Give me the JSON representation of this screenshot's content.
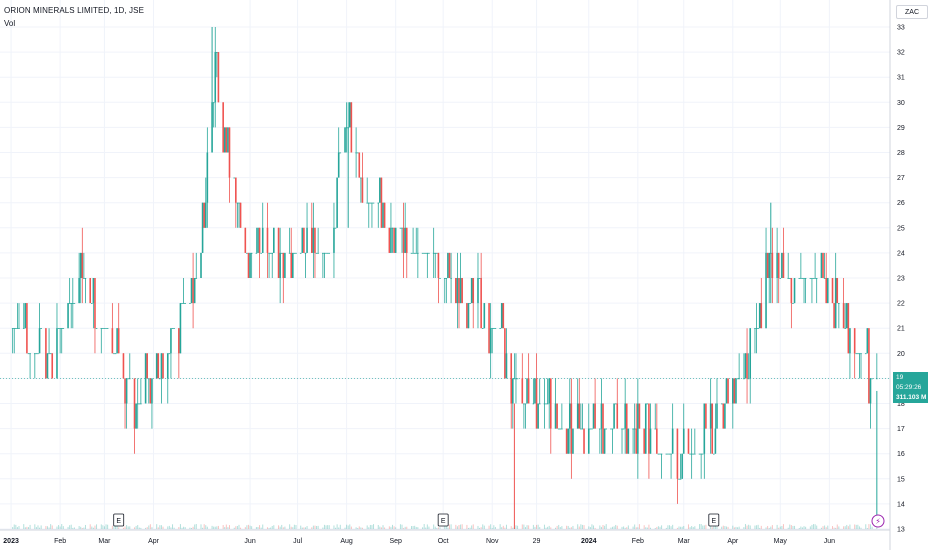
{
  "header": {
    "title": "ORION MINERALS LIMITED, 1D, JSE",
    "volume_label": "Vol",
    "currency": "ZAC"
  },
  "price_tags": {
    "last_price": "19",
    "countdown": "05:29:26",
    "volume": "311.103 M"
  },
  "colors": {
    "up": "#26a69a",
    "down": "#ef5350",
    "grid": "#f0f3fa",
    "axis_text": "#131722",
    "last_price_line": "#26a69a"
  },
  "chart_data": {
    "type": "bar",
    "style": "OHLC candlestick bars",
    "y_axis": {
      "min": 13,
      "max": 33,
      "ticks": [
        13,
        14,
        15,
        16,
        17,
        18,
        19,
        20,
        21,
        22,
        23,
        24,
        25,
        26,
        27,
        28,
        29,
        30,
        31,
        32,
        33
      ],
      "side": "right"
    },
    "x_axis": {
      "labels": [
        "2023",
        "Feb",
        "Mar",
        "Apr",
        "Jun",
        "Jul",
        "Aug",
        "Sep",
        "Oct",
        "Nov",
        "29",
        "2024",
        "Feb",
        "Mar",
        "Apr",
        "May",
        "Jun"
      ],
      "bold": [
        "2023",
        "2024"
      ]
    },
    "last_price": 19,
    "price_path": [
      {
        "date": "2023-01-01",
        "price": 21
      },
      {
        "date": "2023-01-20",
        "price": 20
      },
      {
        "date": "2023-02-05",
        "price": 21
      },
      {
        "date": "2023-02-15",
        "price": 23
      },
      {
        "date": "2023-02-25",
        "price": 21
      },
      {
        "date": "2023-03-10",
        "price": 20
      },
      {
        "date": "2023-03-20",
        "price": 18
      },
      {
        "date": "2023-04-01",
        "price": 19
      },
      {
        "date": "2023-04-15",
        "price": 21
      },
      {
        "date": "2023-04-30",
        "price": 23
      },
      {
        "date": "2023-05-10",
        "price": 31
      },
      {
        "date": "2023-05-20",
        "price": 27
      },
      {
        "date": "2023-05-31",
        "price": 24
      },
      {
        "date": "2023-06-15",
        "price": 24
      },
      {
        "date": "2023-07-01",
        "price": 24
      },
      {
        "date": "2023-07-20",
        "price": 24
      },
      {
        "date": "2023-08-01",
        "price": 29
      },
      {
        "date": "2023-08-15",
        "price": 26
      },
      {
        "date": "2023-09-01",
        "price": 25
      },
      {
        "date": "2023-09-20",
        "price": 24
      },
      {
        "date": "2023-10-05",
        "price": 23
      },
      {
        "date": "2023-10-20",
        "price": 22
      },
      {
        "date": "2023-11-05",
        "price": 21
      },
      {
        "date": "2023-11-15",
        "price": 19
      },
      {
        "date": "2023-12-01",
        "price": 18
      },
      {
        "date": "2023-12-20",
        "price": 17
      },
      {
        "date": "2024-01-10",
        "price": 17
      },
      {
        "date": "2024-02-01",
        "price": 17
      },
      {
        "date": "2024-02-20",
        "price": 16
      },
      {
        "date": "2024-03-10",
        "price": 16
      },
      {
        "date": "2024-03-25",
        "price": 18
      },
      {
        "date": "2024-04-10",
        "price": 19
      },
      {
        "date": "2024-04-25",
        "price": 24
      },
      {
        "date": "2024-05-10",
        "price": 23
      },
      {
        "date": "2024-05-25",
        "price": 23
      },
      {
        "date": "2024-06-10",
        "price": 22
      },
      {
        "date": "2024-06-20",
        "price": 20
      },
      {
        "date": "2024-07-01",
        "price": 19
      }
    ],
    "extremes": [
      {
        "date": "2023-05-08",
        "high": 33
      },
      {
        "date": "2023-08-02",
        "high": 29
      },
      {
        "date": "2023-11-15",
        "low": 13
      },
      {
        "date": "2024-04-25",
        "high": 26
      },
      {
        "date": "2024-07-01",
        "low": 13.5
      }
    ],
    "event_markers": [
      {
        "label": "E",
        "date": "2023-03-10"
      },
      {
        "label": "E",
        "date": "2023-10-01"
      },
      {
        "label": "E",
        "date": "2024-03-20"
      }
    ]
  }
}
